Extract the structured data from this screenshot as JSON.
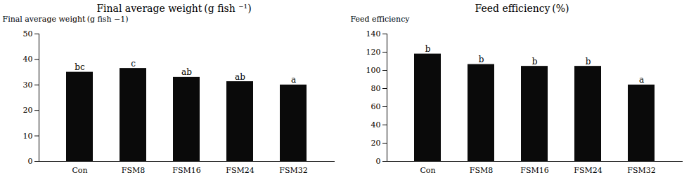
{
  "chart_data": [
    {
      "type": "bar",
      "title": "Final average weight (g fish ⁻¹)",
      "categories": [
        "Con",
        "FSM8",
        "FSM16",
        "FSM24",
        "FSM32"
      ],
      "values": [
        35.0,
        36.5,
        33.0,
        31.3,
        30.0
      ],
      "annotations": [
        "bc",
        "c",
        "ab",
        "ab",
        "a"
      ],
      "ylabel": "Final average weight (g fish −1)",
      "ylim": [
        0,
        50
      ],
      "yticks": [
        0,
        10,
        20,
        30,
        40,
        50
      ],
      "color": "#0a0a0a",
      "grid": false
    },
    {
      "type": "bar",
      "title": "Feed efficiency (%)",
      "categories": [
        "Con",
        "FSM8",
        "FSM16",
        "FSM24",
        "FSM32"
      ],
      "values": [
        118.0,
        106.5,
        104.5,
        104.5,
        84.0
      ],
      "annotations": [
        "b",
        "b",
        "b",
        "b",
        "a"
      ],
      "ylabel": "Feed efficiency",
      "ylim": [
        0,
        140
      ],
      "yticks": [
        0,
        20,
        40,
        60,
        80,
        100,
        120,
        140
      ],
      "color": "#0a0a0a",
      "grid": false
    }
  ]
}
